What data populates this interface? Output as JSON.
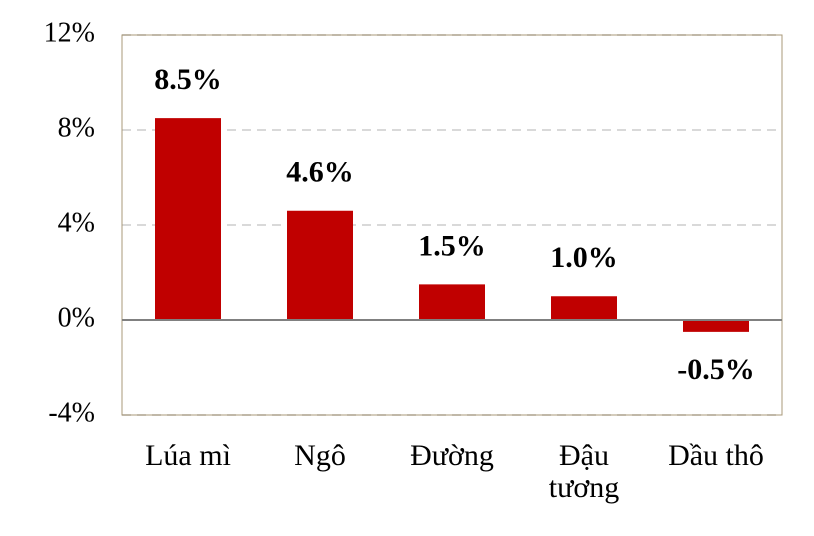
{
  "chart_data": {
    "type": "bar",
    "categories": [
      "Lúa mì",
      "Ngô",
      "Đường",
      "Đậu tương",
      "Dầu thô"
    ],
    "values": [
      8.5,
      4.6,
      1.5,
      1.0,
      -0.5
    ],
    "value_labels": [
      "8.5%",
      "4.6%",
      "1.5%",
      "1.0%",
      "-0.5%"
    ],
    "color": "#c00000",
    "ylim": [
      -4,
      12
    ],
    "yticks": [
      {
        "value": -4,
        "label": "-4%"
      },
      {
        "value": 0,
        "label": "0%"
      },
      {
        "value": 4,
        "label": "4%"
      },
      {
        "value": 8,
        "label": "8%"
      },
      {
        "value": 12,
        "label": "12%"
      }
    ],
    "grid": true
  }
}
